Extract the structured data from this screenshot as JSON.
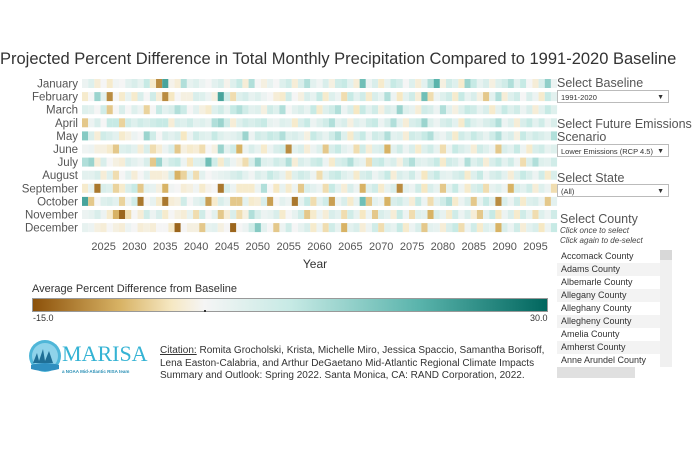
{
  "title": "Projected Percent Difference in Total Monthly Precipitation Compared to 1991-2020 Baseline",
  "controls": {
    "baseline_label": "Select Baseline",
    "baseline_value": "1991-2020",
    "scenario_label_1": "Select Future Emissions",
    "scenario_label_2": "Scenario",
    "scenario_value": "Lower Emissions (RCP 4.5)",
    "state_label": "Select State",
    "state_value": "(All)",
    "county_label": "Select County",
    "county_hint_1": "Click once to select",
    "county_hint_2": "Click again to de-select",
    "counties": [
      "Accomack County",
      "Adams County",
      "Albemarle County",
      "Allegany County",
      "Alleghany County",
      "Allegheny County",
      "Amelia County",
      "Amherst County",
      "Anne Arundel County"
    ]
  },
  "legend": {
    "title": "Average Percent Difference from Baseline",
    "min_label": "-15.0",
    "max_label": "30.0",
    "colors": {
      "min": "#8c510a",
      "mid": "#f5f5f5",
      "max": "#01665e"
    }
  },
  "citation": {
    "label": "Citation:",
    "text": " Romita Grocholski, Krista, Michelle Miro, Jessica Spaccio, Samantha Borisoff, Lena Easton-Calabria, and Arthur DeGaetano Mid-Atlantic Regional Climate Impacts Summary and Outlook: Spring 2022. Santa Monica, CA: RAND Corporation, 2022."
  },
  "logo": {
    "name": "MARISA",
    "tagline": "a NOAA Mid-Atlantic RISA team"
  },
  "chart_data": {
    "type": "heatmap",
    "title": "Projected Percent Difference in Total Monthly Precipitation Compared to 1991-2020 Baseline",
    "xlabel": "Year",
    "ylabel": "",
    "x_start": 2022,
    "x_end": 2098,
    "x_ticks": [
      2025,
      2030,
      2035,
      2040,
      2045,
      2050,
      2055,
      2060,
      2065,
      2070,
      2075,
      2080,
      2085,
      2090,
      2095
    ],
    "rows": [
      "January",
      "February",
      "March",
      "April",
      "May",
      "June",
      "July",
      "August",
      "September",
      "October",
      "November",
      "December"
    ],
    "color_range": [
      -15,
      30
    ],
    "values": [
      [
        2,
        5,
        -3,
        0,
        -4,
        1,
        0,
        4,
        6,
        3,
        10,
        -4,
        -12,
        22,
        -1,
        -3,
        12,
        3,
        5,
        2,
        0,
        4,
        6,
        -1,
        5,
        10,
        -3,
        12,
        0,
        -2,
        3,
        0,
        5,
        8,
        -3,
        6,
        12,
        4,
        1,
        6,
        -2,
        8,
        10,
        4,
        -3,
        18,
        2,
        6,
        -4,
        3,
        10,
        7,
        0,
        5,
        -3,
        4,
        12,
        20,
        -2,
        8,
        5,
        -4,
        14,
        10,
        3,
        6,
        -2,
        5,
        8,
        12,
        4,
        10,
        0,
        -3,
        6,
        15,
        2
      ],
      [
        -4,
        0,
        14,
        4,
        -12,
        0,
        -4,
        3,
        -4,
        6,
        0,
        8,
        -3,
        -12,
        -5,
        0,
        -2,
        -2,
        6,
        5,
        2,
        -2,
        22,
        8,
        -6,
        5,
        7,
        3,
        5,
        2,
        0,
        -3,
        -4,
        8,
        0,
        -2,
        6,
        3,
        10,
        -4,
        5,
        2,
        -6,
        10,
        4,
        8,
        -4,
        6,
        3,
        12,
        2,
        -5,
        4,
        8,
        -3,
        18,
        -6,
        2,
        5,
        8,
        -4,
        10,
        3,
        6,
        -2,
        -8,
        4,
        12,
        -3,
        5,
        8,
        0,
        6,
        2,
        -4,
        10,
        4
      ],
      [
        5,
        4,
        0,
        8,
        -8,
        0,
        6,
        0,
        5,
        2,
        -7,
        0,
        10,
        4,
        6,
        12,
        9,
        0,
        4,
        -2,
        -4,
        5,
        8,
        3,
        10,
        12,
        8,
        4,
        5,
        -2,
        8,
        5,
        12,
        0,
        4,
        6,
        3,
        10,
        -4,
        5,
        8,
        12,
        2,
        6,
        -5,
        10,
        4,
        8,
        -2,
        6,
        4,
        14,
        5,
        3,
        -3,
        8,
        6,
        2,
        12,
        4,
        -2,
        5,
        10,
        8,
        3,
        6,
        -4,
        4,
        10,
        5,
        8,
        2,
        6,
        -3,
        4,
        10,
        5
      ],
      [
        -8,
        2,
        6,
        0,
        10,
        10,
        -7,
        8,
        5,
        8,
        6,
        8,
        10,
        10,
        -3,
        6,
        5,
        8,
        4,
        5,
        3,
        12,
        14,
        8,
        -3,
        5,
        8,
        6,
        8,
        10,
        3,
        2,
        5,
        4,
        -4,
        6,
        10,
        2,
        5,
        8,
        12,
        4,
        6,
        -2,
        5,
        3,
        8,
        10,
        2,
        6,
        12,
        4,
        -3,
        6,
        8,
        14,
        5,
        2,
        6,
        8,
        4,
        -4,
        10,
        5,
        3,
        6,
        8,
        12,
        2,
        5,
        -3,
        6,
        10,
        4,
        8,
        2,
        6
      ],
      [
        16,
        6,
        -3,
        8,
        6,
        4,
        -4,
        -2,
        2,
        0,
        14,
        8,
        0,
        6,
        4,
        6,
        -5,
        2,
        8,
        5,
        4,
        10,
        5,
        3,
        4,
        6,
        14,
        2,
        8,
        6,
        10,
        8,
        12,
        5,
        6,
        4,
        -2,
        10,
        6,
        3,
        8,
        12,
        5,
        -4,
        6,
        10,
        2,
        8,
        6,
        12,
        4,
        5,
        -3,
        8,
        6,
        10,
        12,
        4,
        2,
        6,
        -4,
        8,
        5,
        10,
        6,
        3,
        8,
        12,
        4,
        6,
        -2,
        10,
        5,
        8,
        6,
        4,
        12
      ],
      [
        1,
        2,
        -2,
        -2,
        -4,
        -8,
        5,
        6,
        4,
        -3,
        6,
        -6,
        -3,
        2,
        6,
        -8,
        -2,
        -4,
        -3,
        -6,
        0,
        -2,
        14,
        4,
        8,
        -10,
        2,
        6,
        3,
        -4,
        2,
        6,
        8,
        -12,
        4,
        6,
        -3,
        2,
        5,
        -8,
        6,
        10,
        4,
        2,
        -6,
        8,
        -3,
        5,
        6,
        -10,
        4,
        8,
        2,
        6,
        -4,
        5,
        8,
        3,
        -6,
        2,
        10,
        6,
        4,
        -3,
        8,
        5,
        2,
        -8,
        6,
        4,
        10,
        2,
        -4,
        6,
        8,
        3,
        5
      ],
      [
        12,
        14,
        -3,
        6,
        0,
        -2,
        -3,
        6,
        4,
        2,
        6,
        -8,
        14,
        4,
        8,
        10,
        2,
        -5,
        5,
        6,
        18,
        8,
        -4,
        6,
        2,
        -2,
        -6,
        6,
        14,
        5,
        4,
        8,
        6,
        12,
        -3,
        6,
        4,
        8,
        10,
        2,
        -4,
        6,
        8,
        12,
        5,
        3,
        -6,
        8,
        10,
        4,
        6,
        -2,
        8,
        12,
        5,
        4,
        6,
        10,
        -4,
        8,
        6,
        2,
        12,
        5,
        8,
        -3,
        6,
        10,
        4,
        8,
        2,
        -6,
        6,
        12,
        5,
        4,
        8
      ],
      [
        4,
        4,
        6,
        -3,
        5,
        -6,
        0,
        4,
        -3,
        0,
        4,
        -3,
        -3,
        -2,
        6,
        -10,
        -7,
        4,
        -6,
        4,
        0,
        2,
        3,
        4,
        6,
        8,
        4,
        1,
        6,
        4,
        10,
        6,
        3,
        -4,
        5,
        8,
        6,
        2,
        -6,
        4,
        8,
        10,
        5,
        3,
        -4,
        6,
        8,
        2,
        5,
        10,
        -3,
        6,
        4,
        8,
        2,
        -5,
        6,
        10,
        4,
        3,
        6,
        8,
        -4,
        5,
        10,
        2,
        6,
        8,
        4,
        -3,
        5,
        10,
        6,
        2,
        8,
        -4,
        6
      ],
      [
        -4,
        3,
        -13,
        6,
        5,
        -7,
        -4,
        6,
        10,
        -8,
        4,
        3,
        -2,
        -10,
        1,
        0,
        -3,
        -2,
        1,
        -4,
        -1,
        0,
        -13,
        6,
        2,
        -4,
        -4,
        -4,
        2,
        12,
        0,
        -5,
        3,
        -4,
        2,
        -8,
        6,
        4,
        2,
        -6,
        10,
        4,
        -3,
        6,
        2,
        -10,
        5,
        8,
        -4,
        3,
        6,
        -12,
        4,
        2,
        8,
        -5,
        6,
        3,
        -8,
        4,
        10,
        2,
        -4,
        6,
        8,
        -6,
        3,
        5,
        2,
        -10,
        6,
        4,
        8,
        -3,
        5,
        2,
        -6
      ],
      [
        22,
        -8,
        0,
        5,
        6,
        4,
        -7,
        2,
        8,
        -13,
        0,
        3,
        -4,
        -13,
        -3,
        -2,
        8,
        0,
        4,
        6,
        -11,
        -4,
        6,
        3,
        -8,
        -8,
        4,
        -4,
        -3,
        6,
        -11,
        0,
        4,
        2,
        -13,
        3,
        10,
        -6,
        4,
        8,
        -11,
        2,
        6,
        -4,
        3,
        18,
        -8,
        4,
        2,
        -10,
        6,
        8,
        4,
        -3,
        10,
        2,
        -6,
        4,
        8,
        12,
        -4,
        2,
        6,
        -8,
        3,
        10,
        4,
        -12,
        6,
        2,
        8,
        -4,
        5,
        6,
        2,
        -8,
        4
      ],
      [
        2,
        3,
        6,
        2,
        -4,
        -10,
        -14,
        -6,
        0,
        -3,
        8,
        2,
        6,
        -4,
        0,
        -2,
        -3,
        3,
        -6,
        8,
        0,
        4,
        -8,
        -3,
        6,
        -6,
        -2,
        12,
        6,
        2,
        3,
        6,
        -4,
        0,
        3,
        8,
        -8,
        -4,
        2,
        -3,
        6,
        4,
        -6,
        8,
        3,
        -5,
        2,
        -8,
        6,
        4,
        -3,
        10,
        2,
        -6,
        5,
        4,
        -10,
        6,
        3,
        -4,
        8,
        2,
        6,
        -3,
        -8,
        4,
        10,
        -5,
        2,
        6,
        -4,
        8,
        3,
        -6,
        5,
        2,
        8
      ],
      [
        3,
        2,
        -2,
        -3,
        0,
        -2,
        -3,
        2,
        0,
        -3,
        -2,
        -3,
        0,
        0,
        -4,
        -14,
        0,
        -2,
        -2,
        -8,
        3,
        4,
        -2,
        0,
        -14,
        0,
        2,
        8,
        16,
        4,
        0,
        -8,
        2,
        8,
        0,
        3,
        6,
        -4,
        2,
        -6,
        8,
        3,
        -10,
        4,
        6,
        -3,
        2,
        8,
        -6,
        5,
        3,
        10,
        -4,
        2,
        6,
        -8,
        4,
        3,
        -3,
        6,
        10,
        -6,
        2,
        8,
        -4,
        5,
        3,
        -10,
        6,
        2,
        8,
        -3,
        4,
        6,
        -5,
        2,
        10
      ]
    ]
  }
}
